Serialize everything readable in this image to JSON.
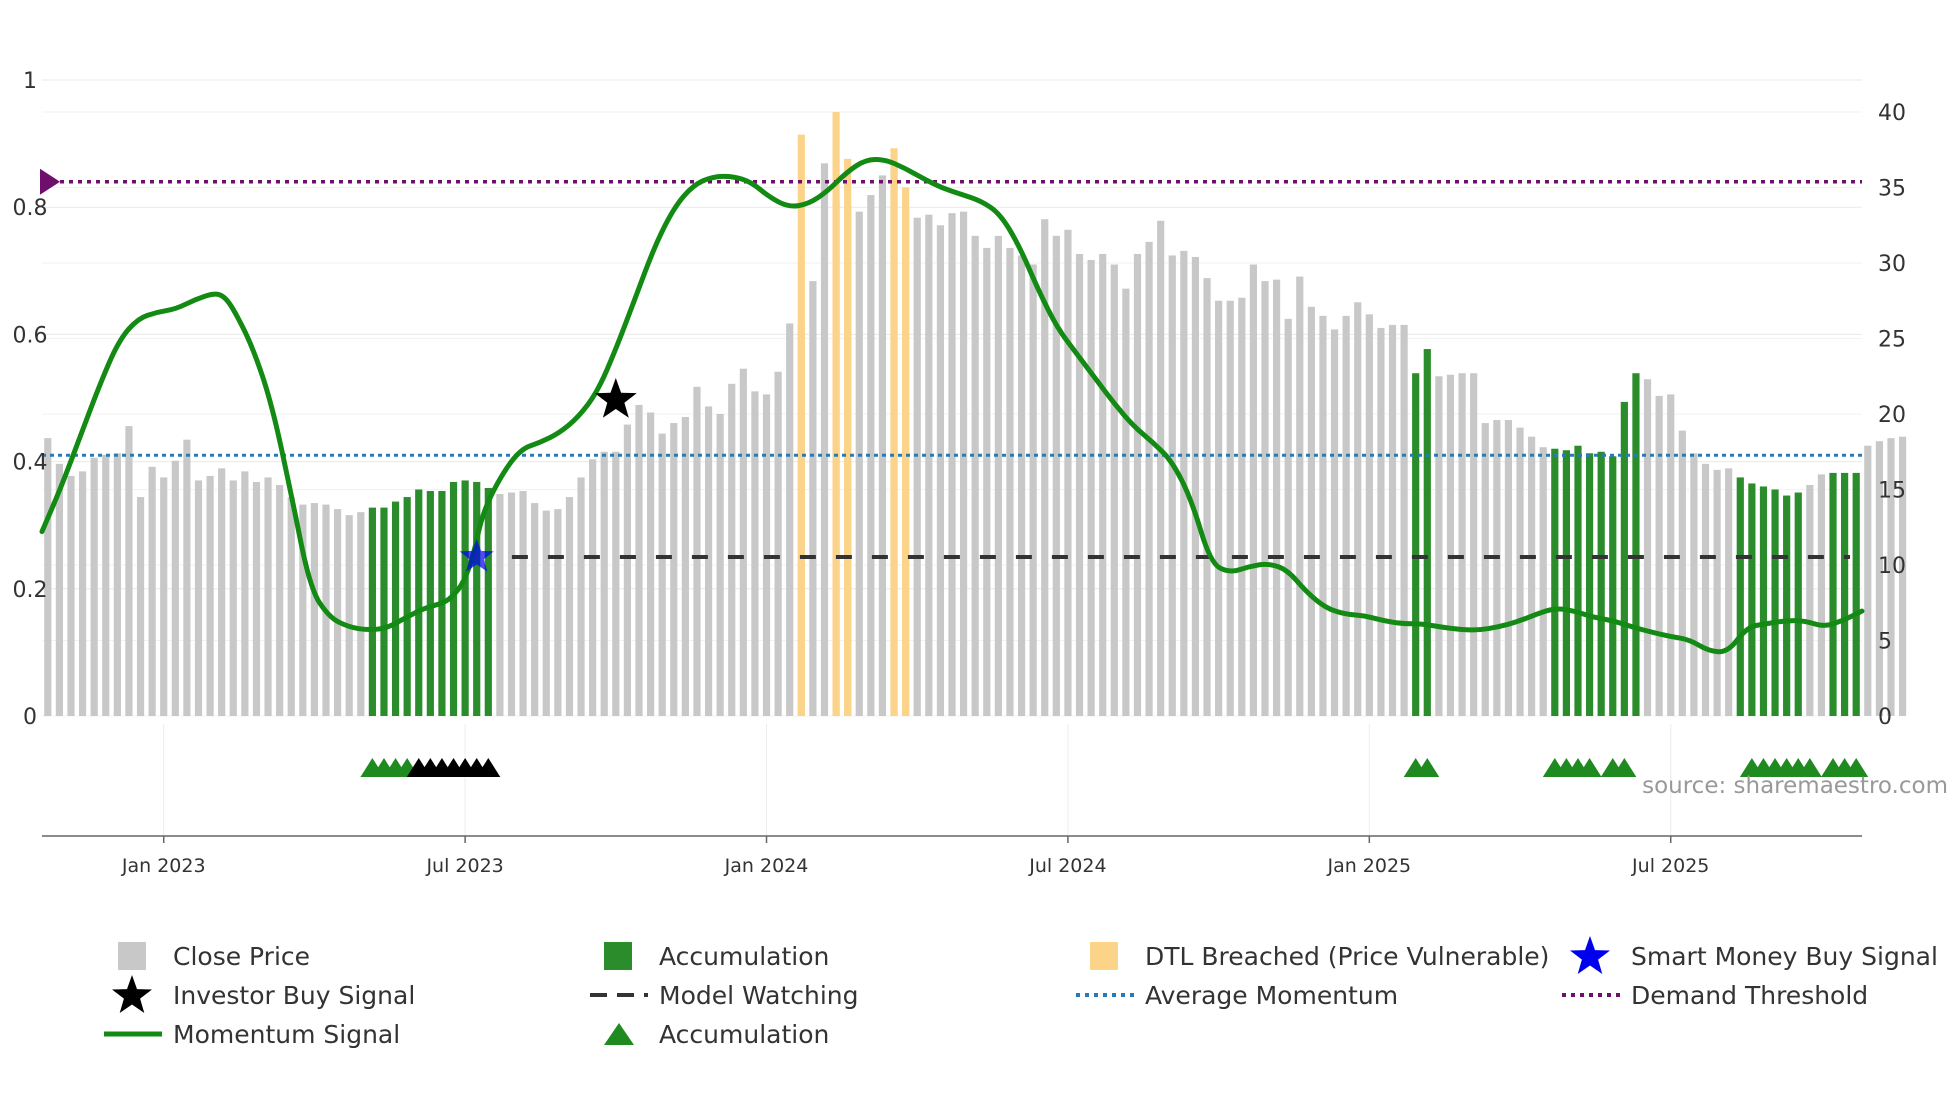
{
  "colors": {
    "close_price": "#c8c8c8",
    "accumulation": "#2a8c2a",
    "dtl": "#fbd48a",
    "momentum": "#138a13",
    "avg_momentum": "#2a7ab5",
    "demand": "#6e0f6e",
    "model_watching": "#333333",
    "smart_money": "#0000ee",
    "investor": "#000000",
    "acc_marker": "#1f8a1f"
  },
  "chart_data": {
    "type": "bar",
    "title": "",
    "source": "source: sharemaestro.com",
    "left_axis": {
      "range": [
        0,
        1
      ],
      "ticks": [
        "0",
        "0.2",
        "0.4",
        "0.6",
        "0.8",
        "1"
      ]
    },
    "right_axis": {
      "range": [
        0,
        40
      ],
      "ticks": [
        "0",
        "5",
        "10",
        "15",
        "20",
        "25",
        "30",
        "35",
        "40"
      ]
    },
    "date_ticks": [
      {
        "label": "Jan 2023",
        "week": 10
      },
      {
        "label": "Jul 2023",
        "week": 36
      },
      {
        "label": "Jan 2024",
        "week": 62
      },
      {
        "label": "Jul 2024",
        "week": 88
      },
      {
        "label": "Jan 2025",
        "week": 114
      },
      {
        "label": "Jul 2025",
        "week": 140
      }
    ],
    "n_weeks": 157,
    "close_price": [
      18.4,
      16.7,
      15.9,
      16.2,
      17.1,
      17.3,
      17.4,
      19.2,
      14.5,
      16.5,
      15.8,
      16.9,
      18.3,
      15.6,
      15.9,
      16.4,
      15.6,
      16.2,
      15.5,
      15.8,
      15.3,
      14.5,
      14,
      14.1,
      14,
      13.7,
      13.3,
      13.5,
      13.8,
      13.8,
      14.2,
      14.5,
      15,
      14.9,
      14.9,
      15.5,
      15.6,
      15.5,
      15.1,
      14.7,
      14.8,
      14.9,
      14.1,
      13.6,
      13.7,
      14.5,
      15.8,
      17,
      17.5,
      17.5,
      19.3,
      20.6,
      20.1,
      18.7,
      19.4,
      19.8,
      21.8,
      20.5,
      20,
      22,
      23,
      21.5,
      21.3,
      22.8,
      26,
      25.9,
      28.8,
      36.6,
      34.1,
      33.8,
      33.4,
      34.5,
      35.8,
      36.6,
      33.7,
      33,
      33.2,
      32.5,
      33.3,
      33.4,
      31.8,
      31,
      31.8,
      31,
      30.5,
      29.9,
      32.9,
      31.8,
      32.2,
      30.6,
      30.2,
      30.6,
      29.9,
      28.3,
      30.6,
      31.4,
      32.8,
      30.5,
      30.8,
      30.4,
      29,
      27.5,
      27.5,
      27.7,
      29.9,
      28.8,
      28.9,
      26.3,
      29.1,
      27.1,
      26.5,
      25.6,
      26.5,
      27.4,
      26.6,
      25.7,
      25.9,
      25.9,
      22.7,
      24.3,
      22.5,
      22.6,
      22.7,
      22.7,
      19.4,
      19.6,
      19.6,
      19.1,
      18.5,
      17.8,
      17.7,
      17.6,
      17.9,
      17.4,
      17.5,
      17.2,
      20.8,
      22.7,
      22.3,
      21.2,
      21.3,
      18.9,
      17.4,
      16.7,
      16.3,
      16.4,
      15.8,
      15.4,
      15.2,
      15,
      14.6,
      14.8,
      15.3,
      16,
      16.1,
      16.1,
      16.1,
      17.9,
      18.2,
      18.4,
      18.5
    ],
    "accumulation_weeks": [
      28,
      29,
      30,
      31,
      32,
      33,
      34,
      35,
      36,
      37,
      38,
      118,
      119,
      130,
      131,
      132,
      133,
      134,
      135,
      136,
      137,
      146,
      147,
      148,
      149,
      150,
      151,
      154,
      155,
      156
    ],
    "dtl_breached": [
      {
        "week": 65,
        "value": 38.5
      },
      {
        "week": 68,
        "value": 40
      },
      {
        "week": 69,
        "value": 36.9
      },
      {
        "week": 73,
        "value": 37.6
      },
      {
        "week": 74,
        "value": 35
      }
    ],
    "momentum_points": [
      [
        0,
        0.29
      ],
      [
        2,
        0.36
      ],
      [
        4,
        0.44
      ],
      [
        6,
        0.52
      ],
      [
        8,
        0.59
      ],
      [
        10,
        0.625
      ],
      [
        12,
        0.635
      ],
      [
        14,
        0.64
      ],
      [
        16,
        0.655
      ],
      [
        18,
        0.665
      ],
      [
        19,
        0.66
      ],
      [
        20,
        0.64
      ],
      [
        22,
        0.58
      ],
      [
        24,
        0.49
      ],
      [
        26,
        0.35
      ],
      [
        28,
        0.2
      ],
      [
        30,
        0.155
      ],
      [
        32,
        0.14
      ],
      [
        34,
        0.135
      ],
      [
        36,
        0.138
      ],
      [
        38,
        0.155
      ],
      [
        40,
        0.17
      ],
      [
        42,
        0.178
      ],
      [
        43,
        0.19
      ],
      [
        44,
        0.21
      ],
      [
        45,
        0.25
      ],
      [
        46,
        0.32
      ],
      [
        48,
        0.38
      ],
      [
        50,
        0.42
      ],
      [
        52,
        0.43
      ],
      [
        54,
        0.445
      ],
      [
        56,
        0.47
      ],
      [
        58,
        0.51
      ],
      [
        60,
        0.58
      ],
      [
        62,
        0.66
      ],
      [
        64,
        0.74
      ],
      [
        66,
        0.8
      ],
      [
        68,
        0.835
      ],
      [
        70,
        0.848
      ],
      [
        72,
        0.849
      ],
      [
        74,
        0.84
      ],
      [
        76,
        0.815
      ],
      [
        78,
        0.8
      ],
      [
        80,
        0.805
      ],
      [
        82,
        0.825
      ],
      [
        84,
        0.855
      ],
      [
        86,
        0.875
      ],
      [
        88,
        0.875
      ],
      [
        90,
        0.862
      ],
      [
        92,
        0.845
      ],
      [
        94,
        0.83
      ],
      [
        96,
        0.82
      ],
      [
        98,
        0.81
      ],
      [
        100,
        0.79
      ],
      [
        102,
        0.74
      ],
      [
        104,
        0.67
      ],
      [
        106,
        0.61
      ],
      [
        108,
        0.57
      ],
      [
        110,
        0.53
      ],
      [
        112,
        0.49
      ],
      [
        114,
        0.455
      ],
      [
        116,
        0.43
      ],
      [
        118,
        0.4
      ],
      [
        120,
        0.34
      ],
      [
        122,
        0.24
      ],
      [
        124,
        0.225
      ],
      [
        126,
        0.235
      ],
      [
        128,
        0.24
      ],
      [
        130,
        0.23
      ],
      [
        132,
        0.195
      ],
      [
        134,
        0.17
      ],
      [
        136,
        0.16
      ],
      [
        138,
        0.158
      ],
      [
        140,
        0.15
      ],
      [
        142,
        0.145
      ],
      [
        144,
        0.145
      ],
      [
        146,
        0.14
      ],
      [
        148,
        0.136
      ],
      [
        150,
        0.135
      ],
      [
        152,
        0.14
      ],
      [
        154,
        0.148
      ],
      [
        156,
        0.16
      ],
      [
        158,
        0.17
      ],
      [
        160,
        0.165
      ],
      [
        162,
        0.155
      ],
      [
        164,
        0.15
      ],
      [
        166,
        0.14
      ],
      [
        168,
        0.132
      ],
      [
        170,
        0.125
      ],
      [
        172,
        0.12
      ],
      [
        174,
        0.102
      ],
      [
        176,
        0.1
      ],
      [
        178,
        0.14
      ],
      [
        180,
        0.145
      ],
      [
        182,
        0.15
      ],
      [
        184,
        0.15
      ],
      [
        186,
        0.14
      ],
      [
        188,
        0.15
      ],
      [
        190,
        0.165
      ]
    ],
    "momentum_x_scale_weeks": 190,
    "average_momentum": 0.41,
    "demand_threshold": 0.84,
    "model_watching_level": 0.25,
    "model_watching_start_week": 39,
    "investor_buy_signal": {
      "week": 49,
      "value": 0.5
    },
    "smart_money_buy_signal": {
      "week": 37,
      "value": 0.25
    },
    "marker_groups": [
      {
        "color": "green",
        "weeks": [
          28,
          29,
          30,
          31
        ]
      },
      {
        "color": "black",
        "weeks": [
          32,
          33,
          34,
          35,
          36,
          37,
          38
        ]
      },
      {
        "color": "green",
        "weeks": [
          118,
          119,
          130,
          131,
          132,
          133,
          135,
          136,
          147,
          148,
          149,
          150,
          151,
          152,
          154,
          155,
          156
        ]
      }
    ]
  },
  "legend": [
    {
      "key": "close_price",
      "label": "Close Price"
    },
    {
      "key": "accumulation",
      "label": "Accumulation"
    },
    {
      "key": "dtl",
      "label": "DTL Breached (Price Vulnerable)"
    },
    {
      "key": "smart_money",
      "label": "Smart Money Buy Signal"
    },
    {
      "key": "investor",
      "label": "Investor Buy Signal"
    },
    {
      "key": "model_watching",
      "label": "Model Watching"
    },
    {
      "key": "avg_momentum",
      "label": "Average Momentum"
    },
    {
      "key": "demand",
      "label": "Demand Threshold"
    },
    {
      "key": "momentum",
      "label": "Momentum Signal"
    },
    {
      "key": "acc_marker",
      "label": "Accumulation"
    }
  ]
}
